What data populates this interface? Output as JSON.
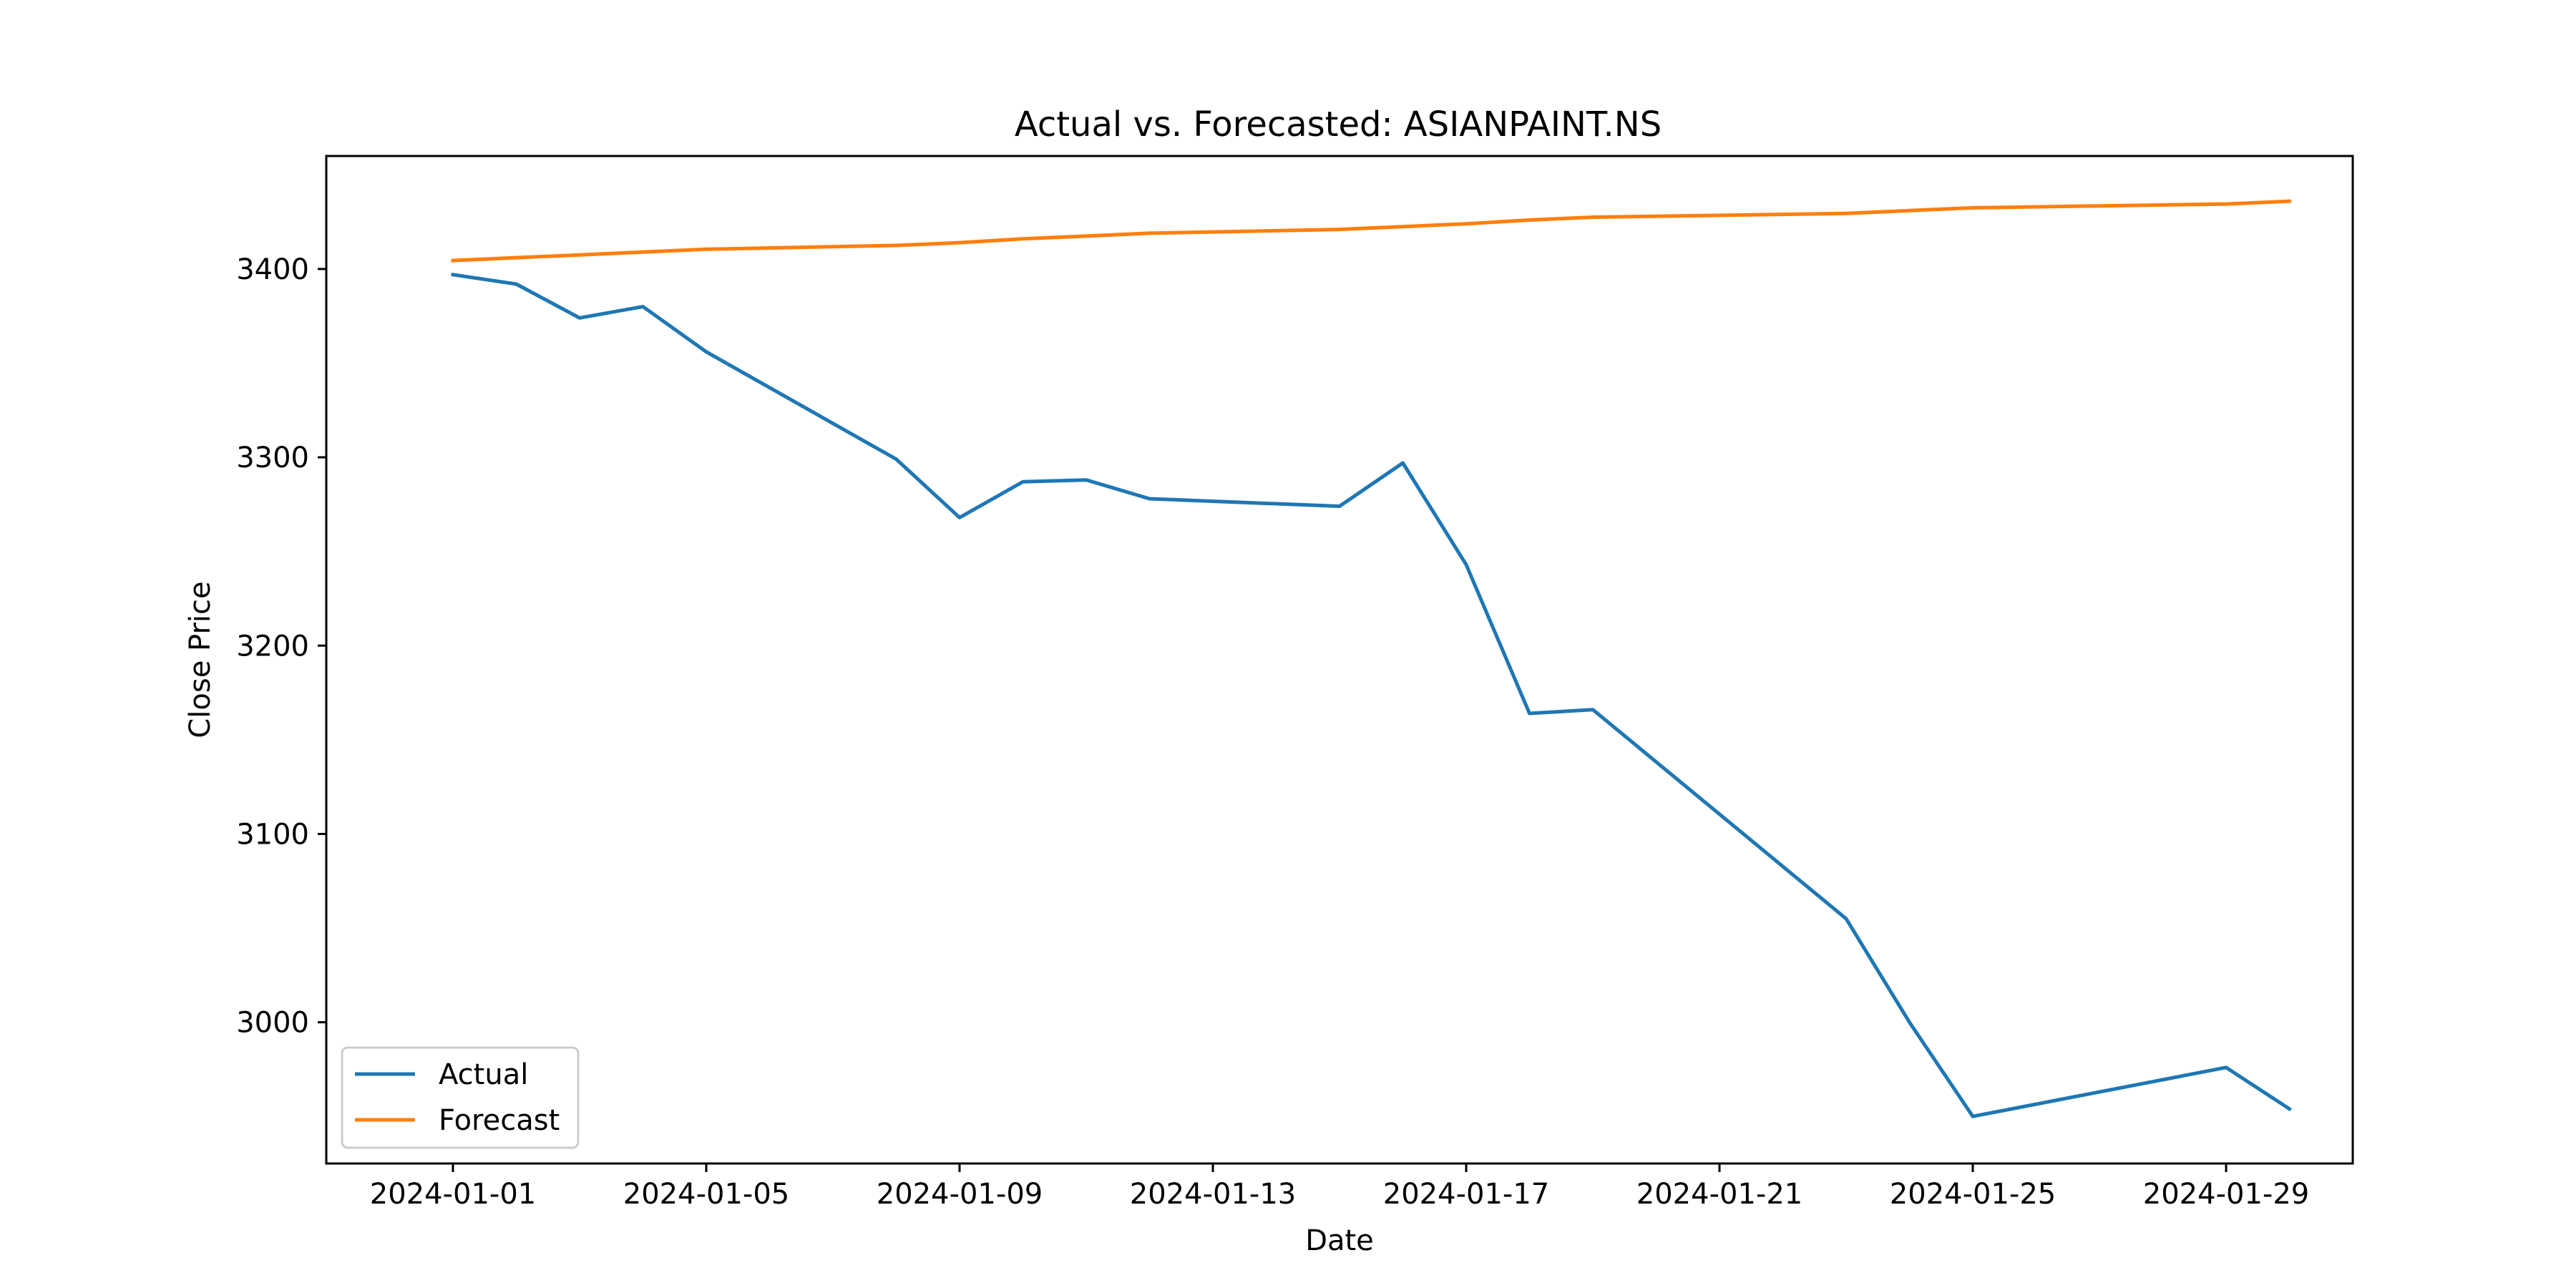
{
  "chart_data": {
    "type": "line",
    "title": "Actual vs. Forecasted: ASIANPAINT.NS",
    "xlabel": "Date",
    "ylabel": "Close Price",
    "xlim": [
      "2023-12-30",
      "2024-01-31"
    ],
    "ylim": [
      2925,
      3460
    ],
    "x_ticks": [
      "2024-01-01",
      "2024-01-05",
      "2024-01-09",
      "2024-01-13",
      "2024-01-17",
      "2024-01-21",
      "2024-01-25",
      "2024-01-29"
    ],
    "y_ticks": [
      3000,
      3100,
      3200,
      3300,
      3400
    ],
    "grid": false,
    "legend_position": "lower-left",
    "series": [
      {
        "name": "Actual",
        "color": "#1f77b4",
        "x": [
          "2024-01-01",
          "2024-01-02",
          "2024-01-03",
          "2024-01-04",
          "2024-01-05",
          "2024-01-08",
          "2024-01-09",
          "2024-01-10",
          "2024-01-11",
          "2024-01-12",
          "2024-01-15",
          "2024-01-16",
          "2024-01-17",
          "2024-01-18",
          "2024-01-19",
          "2024-01-23",
          "2024-01-24",
          "2024-01-25",
          "2024-01-29",
          "2024-01-30"
        ],
        "y": [
          3397,
          3392,
          3374,
          3380,
          3356,
          3299,
          3268,
          3287,
          3288,
          3278,
          3274,
          3297,
          3243,
          3164,
          3166,
          3055,
          3000,
          2950,
          2976,
          2954
        ]
      },
      {
        "name": "Forecast",
        "color": "#ff7f0e",
        "x": [
          "2024-01-01",
          "2024-01-02",
          "2024-01-03",
          "2024-01-04",
          "2024-01-05",
          "2024-01-08",
          "2024-01-09",
          "2024-01-10",
          "2024-01-11",
          "2024-01-12",
          "2024-01-15",
          "2024-01-16",
          "2024-01-17",
          "2024-01-18",
          "2024-01-19",
          "2024-01-23",
          "2024-01-24",
          "2024-01-25",
          "2024-01-29",
          "2024-01-30"
        ],
        "y": [
          3404.5,
          3406,
          3407.5,
          3409,
          3410.5,
          3412.5,
          3414,
          3416,
          3417.5,
          3419,
          3421,
          3422.5,
          3424,
          3426,
          3427.5,
          3429.5,
          3431,
          3432.5,
          3434.5,
          3436
        ]
      }
    ]
  }
}
